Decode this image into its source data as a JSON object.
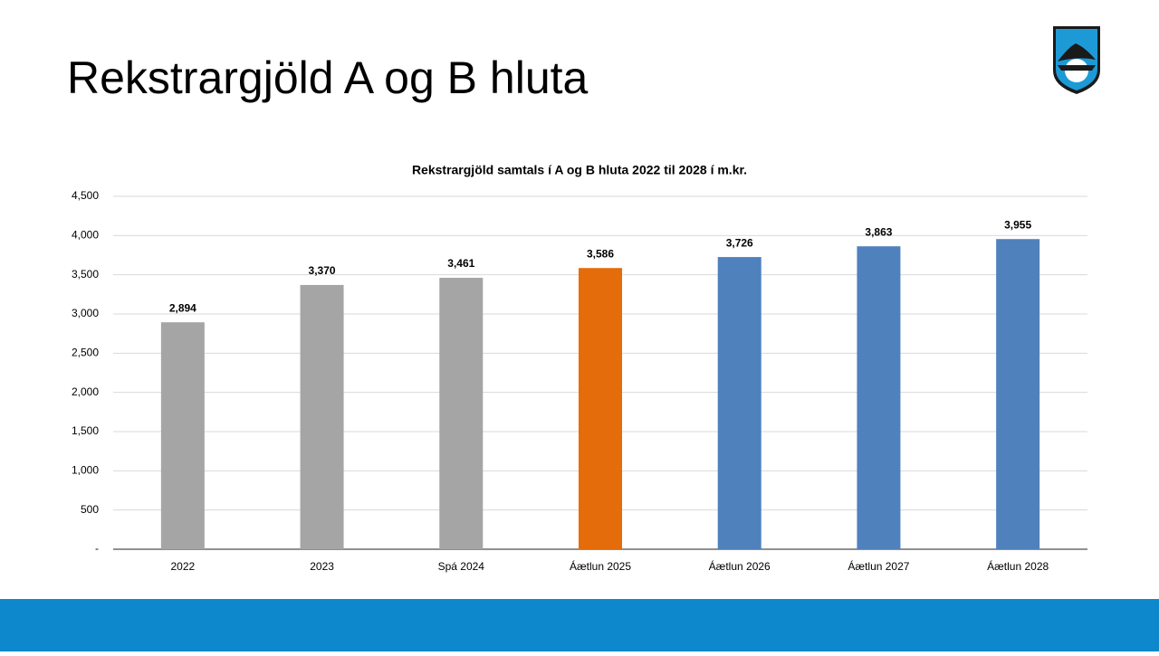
{
  "slide": {
    "title": "Rekstrargjöld A og B hluta"
  },
  "chart_data": {
    "type": "bar",
    "title": "Rekstrargjöld samtals í A og B hluta 2022 til 2028 í m.kr.",
    "categories": [
      "2022",
      "2023",
      "Spá 2024",
      "Áætlun 2025",
      "Áætlun 2026",
      "Áætlun 2027",
      "Áætlun 2028"
    ],
    "values": [
      2894,
      3370,
      3461,
      3586,
      3726,
      3863,
      3955
    ],
    "value_labels": [
      "2,894",
      "3,370",
      "3,461",
      "3,586",
      "3,726",
      "3,863",
      "3,955"
    ],
    "colors": [
      "#a5a5a5",
      "#a5a5a5",
      "#a5a5a5",
      "#e46c0a",
      "#4f81bd",
      "#4f81bd",
      "#4f81bd"
    ],
    "ylim": [
      0,
      4500
    ],
    "yticks": [
      {
        "value": 0,
        "label": "-"
      },
      500,
      {
        "value": 1000,
        "label": "1,000"
      },
      {
        "value": 1500,
        "label": "1,500"
      },
      {
        "value": 2000,
        "label": "2,000"
      },
      {
        "value": 2500,
        "label": "2,500"
      },
      {
        "value": 3000,
        "label": "3,000"
      },
      {
        "value": 3500,
        "label": "3,500"
      },
      {
        "value": 4000,
        "label": "4,000"
      },
      {
        "value": 4500,
        "label": "4,500"
      }
    ],
    "grid": true
  }
}
